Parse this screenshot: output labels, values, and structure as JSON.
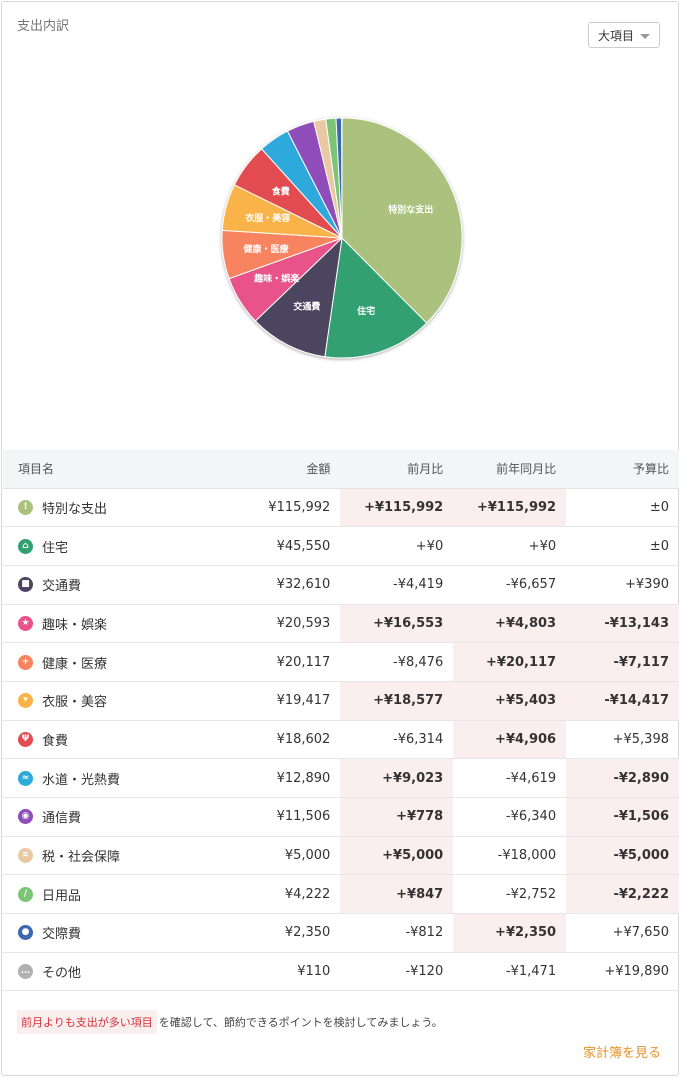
{
  "header": {
    "title": "支出内訳",
    "dropdown_value": "大項目"
  },
  "chart_data": {
    "type": "pie",
    "slices": [
      {
        "label": "特別な支出",
        "value": 115992,
        "color": "#abc27f",
        "shown_label": "特別な支出"
      },
      {
        "label": "住宅",
        "value": 45550,
        "color": "#33a06f",
        "shown_label": "住宅"
      },
      {
        "label": "交通費",
        "value": 32610,
        "color": "#4b4560",
        "shown_label": "交通費"
      },
      {
        "label": "趣味・娯楽",
        "value": 20593,
        "color": "#e8538a",
        "shown_label": "趣味・娯楽"
      },
      {
        "label": "健康・医療",
        "value": 20117,
        "color": "#f7845e",
        "shown_label": "健康・医療"
      },
      {
        "label": "衣服・美容",
        "value": 19417,
        "color": "#f9b349",
        "shown_label": "衣服・美容"
      },
      {
        "label": "食費",
        "value": 18602,
        "color": "#e24b4f",
        "shown_label": "食費"
      },
      {
        "label": "水道・光熱費",
        "value": 12890,
        "color": "#2ea9dc",
        "shown_label": ""
      },
      {
        "label": "通信費",
        "value": 11506,
        "color": "#8e4db9",
        "shown_label": ""
      },
      {
        "label": "税・社会保障",
        "value": 5000,
        "color": "#e9c9a3",
        "shown_label": ""
      },
      {
        "label": "日用品",
        "value": 4222,
        "color": "#7cc577",
        "shown_label": ""
      },
      {
        "label": "交際費",
        "value": 2350,
        "color": "#3a69b0",
        "shown_label": ""
      },
      {
        "label": "その他",
        "value": 110,
        "color": "#9a9a9a",
        "shown_label": ""
      }
    ]
  },
  "table": {
    "headers": {
      "name": "項目名",
      "amount": "金額",
      "mom": "前月比",
      "yoy": "前年同月比",
      "budget": "予算比"
    },
    "rows": [
      {
        "name": "特別な支出",
        "icon": "exclamation-icon",
        "icon_color": "#abc27f",
        "amount": "¥115,992",
        "mom": "+¥115,992",
        "mom_up": true,
        "yoy": "+¥115,992",
        "yoy_up": true,
        "budget": "±0",
        "budget_up": false
      },
      {
        "name": "住宅",
        "icon": "house-icon",
        "icon_color": "#33a06f",
        "amount": "¥45,550",
        "mom": "+¥0",
        "mom_up": false,
        "yoy": "+¥0",
        "yoy_up": false,
        "budget": "±0",
        "budget_up": false
      },
      {
        "name": "交通費",
        "icon": "train-icon",
        "icon_color": "#4b4560",
        "amount": "¥32,610",
        "mom": "-¥4,419",
        "mom_up": false,
        "yoy": "-¥6,657",
        "yoy_up": false,
        "budget": "+¥390",
        "budget_up": false
      },
      {
        "name": "趣味・娯楽",
        "icon": "star-icon",
        "icon_color": "#e8538a",
        "amount": "¥20,593",
        "mom": "+¥16,553",
        "mom_up": true,
        "yoy": "+¥4,803",
        "yoy_up": true,
        "budget": "-¥13,143",
        "budget_up": true
      },
      {
        "name": "健康・医療",
        "icon": "cross-icon",
        "icon_color": "#f7845e",
        "amount": "¥20,117",
        "mom": "-¥8,476",
        "mom_up": false,
        "yoy": "+¥20,117",
        "yoy_up": true,
        "budget": "-¥7,117",
        "budget_up": true
      },
      {
        "name": "衣服・美容",
        "icon": "shirt-icon",
        "icon_color": "#f9b349",
        "amount": "¥19,417",
        "mom": "+¥18,577",
        "mom_up": true,
        "yoy": "+¥5,403",
        "yoy_up": true,
        "budget": "-¥14,417",
        "budget_up": true
      },
      {
        "name": "食費",
        "icon": "fork-knife-icon",
        "icon_color": "#e24b4f",
        "amount": "¥18,602",
        "mom": "-¥6,314",
        "mom_up": false,
        "yoy": "+¥4,906",
        "yoy_up": true,
        "budget": "+¥5,398",
        "budget_up": false
      },
      {
        "name": "水道・光熱費",
        "icon": "faucet-icon",
        "icon_color": "#2ea9dc",
        "amount": "¥12,890",
        "mom": "+¥9,023",
        "mom_up": true,
        "yoy": "-¥4,619",
        "yoy_up": false,
        "budget": "-¥2,890",
        "budget_up": true
      },
      {
        "name": "通信費",
        "icon": "antenna-icon",
        "icon_color": "#8e4db9",
        "amount": "¥11,506",
        "mom": "+¥778",
        "mom_up": true,
        "yoy": "-¥6,340",
        "yoy_up": false,
        "budget": "-¥1,506",
        "budget_up": true
      },
      {
        "name": "税・社会保障",
        "icon": "coins-icon",
        "icon_color": "#e9c9a3",
        "amount": "¥5,000",
        "mom": "+¥5,000",
        "mom_up": true,
        "yoy": "-¥18,000",
        "yoy_up": false,
        "budget": "-¥5,000",
        "budget_up": true
      },
      {
        "name": "日用品",
        "icon": "pen-icon",
        "icon_color": "#7cc577",
        "amount": "¥4,222",
        "mom": "+¥847",
        "mom_up": true,
        "yoy": "-¥2,752",
        "yoy_up": false,
        "budget": "-¥2,222",
        "budget_up": true
      },
      {
        "name": "交際費",
        "icon": "people-icon",
        "icon_color": "#3a69b0",
        "amount": "¥2,350",
        "mom": "-¥812",
        "mom_up": false,
        "yoy": "+¥2,350",
        "yoy_up": true,
        "budget": "+¥7,650",
        "budget_up": false
      },
      {
        "name": "その他",
        "icon": "dots-icon",
        "icon_color": "#b0b0b0",
        "amount": "¥110",
        "mom": "-¥120",
        "mom_up": false,
        "yoy": "-¥1,471",
        "yoy_up": false,
        "budget": "+¥19,890",
        "budget_up": false
      }
    ]
  },
  "footer": {
    "tag_text": "前月よりも支出が多い項目",
    "note_text": "を確認して、節約できるポイントを検討してみましょう。",
    "link_text": "家計簿を見る"
  }
}
